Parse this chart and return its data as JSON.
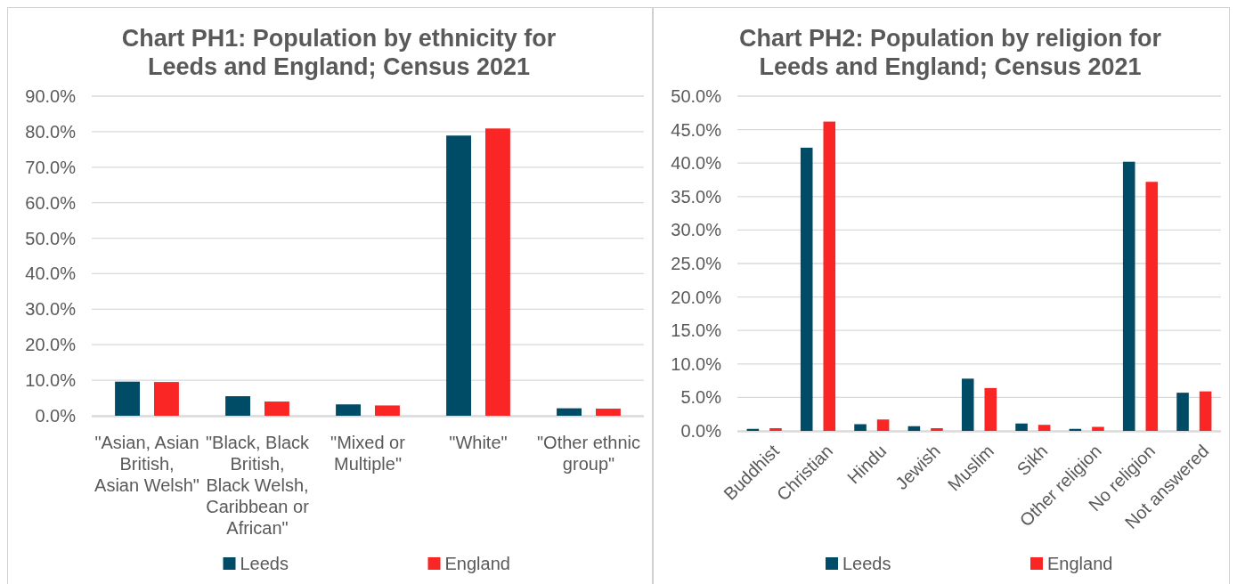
{
  "chart_data": [
    {
      "type": "bar",
      "title": "Chart PH1: Population by ethnicity for Leeds and England; Census 2021",
      "categories": [
        "\"Asian, Asian British, Asian Welsh\"",
        "\"Black, Black British, Black Welsh, Caribbean or African\"",
        "\"Mixed or Multiple\"",
        "\"White\"",
        "\"Other ethnic group\""
      ],
      "series": [
        {
          "name": "Leeds",
          "color": "#004b66",
          "values": [
            9.6,
            5.5,
            3.2,
            78.9,
            2.1
          ]
        },
        {
          "name": "England",
          "color": "#fa2525",
          "values": [
            9.5,
            4.0,
            2.9,
            80.9,
            2.0
          ]
        }
      ],
      "ylim": [
        0,
        90
      ],
      "yticks": [
        {
          "value": 0,
          "label": "0.0%"
        },
        {
          "value": 10,
          "label": "10.0%"
        },
        {
          "value": 20,
          "label": "20.0%"
        },
        {
          "value": 30,
          "label": "30.0%"
        },
        {
          "value": 40,
          "label": "40.0%"
        },
        {
          "value": 50,
          "label": "50.0%"
        },
        {
          "value": 60,
          "label": "60.0%"
        },
        {
          "value": 70,
          "label": "70.0%"
        },
        {
          "value": 80,
          "label": "80.0%"
        },
        {
          "value": 90,
          "label": "90.0%"
        }
      ],
      "grid": "y",
      "legend": "bottom"
    },
    {
      "type": "bar",
      "title": "Chart PH2: Population by religion for Leeds and England; Census 2021",
      "categories": [
        "Buddhist",
        "Christian",
        "Hindu",
        "Jewish",
        "Muslim",
        "Sikh",
        "Other religion",
        "No religion",
        "Not answered"
      ],
      "series": [
        {
          "name": "Leeds",
          "color": "#004b66",
          "values": [
            0.3,
            42.3,
            1.0,
            0.7,
            7.8,
            1.1,
            0.3,
            40.2,
            5.7
          ]
        },
        {
          "name": "England",
          "color": "#fa2525",
          "values": [
            0.4,
            46.2,
            1.7,
            0.4,
            6.4,
            0.9,
            0.6,
            37.2,
            5.9
          ]
        }
      ],
      "ylim": [
        0,
        50
      ],
      "yticks": [
        {
          "value": 0,
          "label": "0.0%"
        },
        {
          "value": 5,
          "label": "5.0%"
        },
        {
          "value": 10,
          "label": "10.0%"
        },
        {
          "value": 15,
          "label": "15.0%"
        },
        {
          "value": 20,
          "label": "20.0%"
        },
        {
          "value": 25,
          "label": "25.0%"
        },
        {
          "value": 30,
          "label": "30.0%"
        },
        {
          "value": 35,
          "label": "35.0%"
        },
        {
          "value": 40,
          "label": "40.0%"
        },
        {
          "value": 45,
          "label": "45.0%"
        },
        {
          "value": 50,
          "label": "50.0%"
        }
      ],
      "grid": "y",
      "legend": "bottom"
    }
  ]
}
